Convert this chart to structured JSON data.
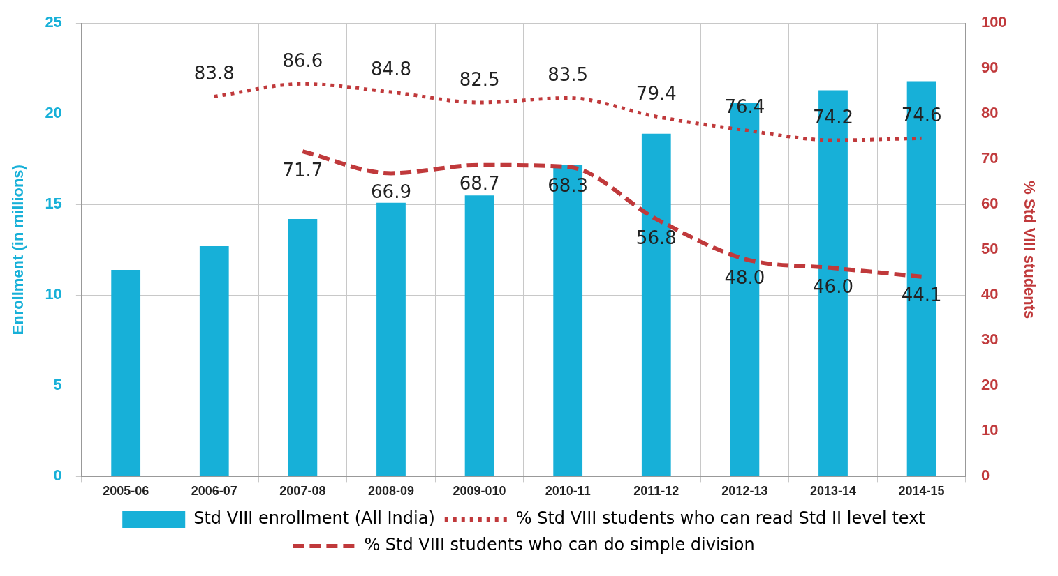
{
  "chart_data": {
    "type": "bar",
    "categories": [
      "2005-06",
      "2006-07",
      "2007-08",
      "2008-09",
      "2009-010",
      "2010-11",
      "2011-12",
      "2012-13",
      "2013-14",
      "2014-15"
    ],
    "series": [
      {
        "name": "Std VIII enrollment (All India)",
        "color": "#17b0d8",
        "values": [
          11.4,
          12.7,
          14.2,
          15.1,
          15.5,
          17.2,
          18.9,
          20.6,
          21.3,
          21.8
        ]
      },
      {
        "name": "% Std VIII students who can read Std II level text",
        "type": "line",
        "axis": "y2",
        "color": "#c0393b",
        "line_style": "dotted",
        "values": [
          null,
          83.8,
          86.6,
          84.8,
          82.5,
          83.5,
          79.4,
          76.4,
          74.2,
          74.6
        ],
        "value_labels": [
          null,
          "83.8",
          "86.6",
          "84.8",
          "82.5",
          "83.5",
          "79.4",
          "76.4",
          "74.2",
          "74.6"
        ]
      },
      {
        "name": "% Std VIII students who can do simple division",
        "type": "line",
        "axis": "y2",
        "color": "#c0393b",
        "line_style": "dashed",
        "values": [
          null,
          null,
          71.7,
          66.9,
          68.7,
          68.3,
          56.8,
          48.0,
          46.0,
          44.1
        ],
        "value_labels": [
          null,
          null,
          "71.7",
          "66.9",
          "68.7",
          "68.3",
          "56.8",
          "48.0",
          "46.0",
          "44.1"
        ]
      }
    ],
    "ylabel": "Enrollment (in millions)",
    "y2label": "% Std VIII students",
    "ylim": [
      0,
      25
    ],
    "yticks": [
      0,
      5,
      10,
      15,
      20,
      25
    ],
    "y2lim": [
      0,
      100
    ],
    "y2ticks": [
      0,
      10,
      20,
      30,
      40,
      50,
      60,
      70,
      80,
      90,
      100
    ],
    "grid": true,
    "legend": "bottom",
    "marker": "none"
  }
}
